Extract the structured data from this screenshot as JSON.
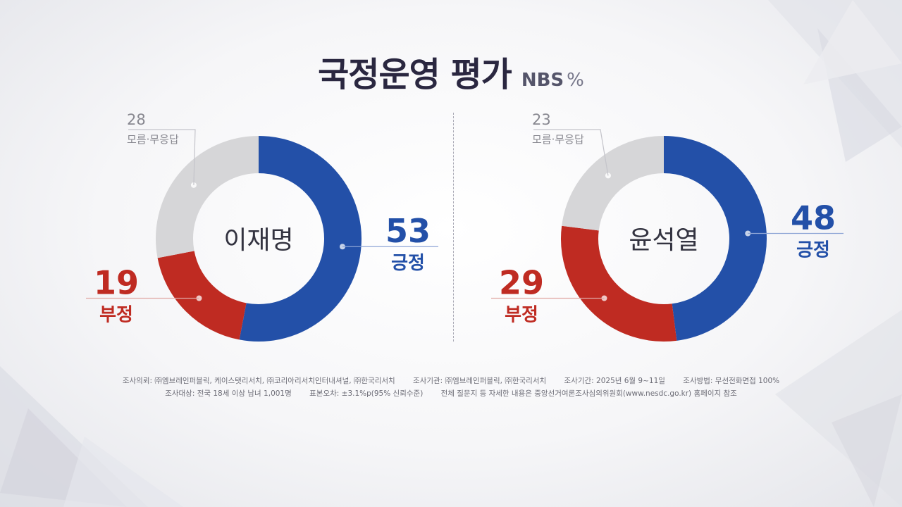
{
  "header": {
    "title": "국정운영 평가",
    "source": "NBS",
    "unit": "%"
  },
  "colors": {
    "positive": "#2350a8",
    "negative": "#bf2b22",
    "unknown": "#d6d6d8",
    "label_dark": "#333340",
    "label_gray": "#888890"
  },
  "chart_data": [
    {
      "type": "pie",
      "title": "이재명",
      "slices": [
        {
          "label": "긍정",
          "value": 53
        },
        {
          "label": "부정",
          "value": 19
        },
        {
          "label": "모름·무응답",
          "value": 28
        }
      ]
    },
    {
      "type": "pie",
      "title": "윤석열",
      "slices": [
        {
          "label": "긍정",
          "value": 48
        },
        {
          "label": "부정",
          "value": 29
        },
        {
          "label": "모름·무응답",
          "value": 23
        }
      ]
    }
  ],
  "footer": {
    "line1": [
      "조사의뢰: ㈜엠브레인퍼블릭, 케이스탯리서치, ㈜코리아리서치인터내셔널, ㈜한국리서치",
      "조사기관: ㈜엠브레인퍼블릭, ㈜한국리서치",
      "조사기간: 2025년 6월 9~11일",
      "조사방법: 무선전화면접 100%"
    ],
    "line2": [
      "조사대상: 전국 18세 이상 남녀 1,001명",
      "표본오차: ±3.1%p(95% 신뢰수준)",
      "전체 질문지 등 자세한 내용은 중앙선거여론조사심의위원회(www.nesdc.go.kr) 홈페이지 참조"
    ]
  }
}
